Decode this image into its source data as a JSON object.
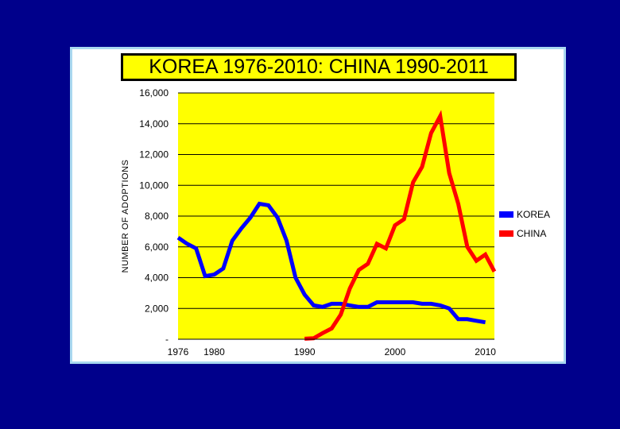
{
  "chart_data": {
    "type": "line",
    "title": "KOREA 1976-2010: CHINA 1990-2011",
    "ylabel": "NUMBER OF ADOPTIONS",
    "xlabel": "",
    "xlim": [
      1976,
      2011
    ],
    "ylim": [
      0,
      16000
    ],
    "y_ticks": [
      0,
      2000,
      4000,
      6000,
      8000,
      10000,
      12000,
      14000,
      16000
    ],
    "y_tick_labels": [
      "-",
      "2,000",
      "4,000",
      "6,000",
      "8,000",
      "10,000",
      "12,000",
      "14,000",
      "16,000"
    ],
    "x_ticks": [
      1976,
      1980,
      1990,
      2000,
      2010
    ],
    "x_tick_labels": [
      "1976",
      "1980",
      "1990",
      "2000",
      "2010"
    ],
    "grid": "horizontal",
    "legend_position": "right",
    "plot_background": "#ffff00",
    "series": [
      {
        "name": "KOREA",
        "color": "#0000ff",
        "x": [
          1976,
          1977,
          1978,
          1979,
          1980,
          1981,
          1982,
          1983,
          1984,
          1985,
          1986,
          1987,
          1988,
          1989,
          1990,
          1991,
          1992,
          1993,
          1994,
          1995,
          1996,
          1997,
          1998,
          1999,
          2000,
          2001,
          2002,
          2003,
          2004,
          2005,
          2006,
          2007,
          2008,
          2009,
          2010
        ],
        "y": [
          6600,
          6200,
          5900,
          4100,
          4200,
          4600,
          6400,
          7200,
          7900,
          8800,
          8700,
          7900,
          6400,
          4000,
          2900,
          2200,
          2100,
          2300,
          2300,
          2200,
          2100,
          2100,
          2400,
          2400,
          2400,
          2400,
          2400,
          2300,
          2300,
          2200,
          2000,
          1300,
          1300,
          1200,
          1100
        ]
      },
      {
        "name": "CHINA",
        "color": "#ff0000",
        "x": [
          1990,
          1991,
          1992,
          1993,
          1994,
          1995,
          1996,
          1997,
          1998,
          1999,
          2000,
          2001,
          2002,
          2003,
          2004,
          2005,
          2006,
          2007,
          2008,
          2009,
          2010,
          2011
        ],
        "y": [
          30,
          60,
          400,
          700,
          1600,
          3300,
          4500,
          4900,
          6200,
          5900,
          7400,
          7800,
          10200,
          11200,
          13400,
          14500,
          10800,
          8800,
          6000,
          5100,
          5500,
          4400
        ]
      }
    ]
  }
}
